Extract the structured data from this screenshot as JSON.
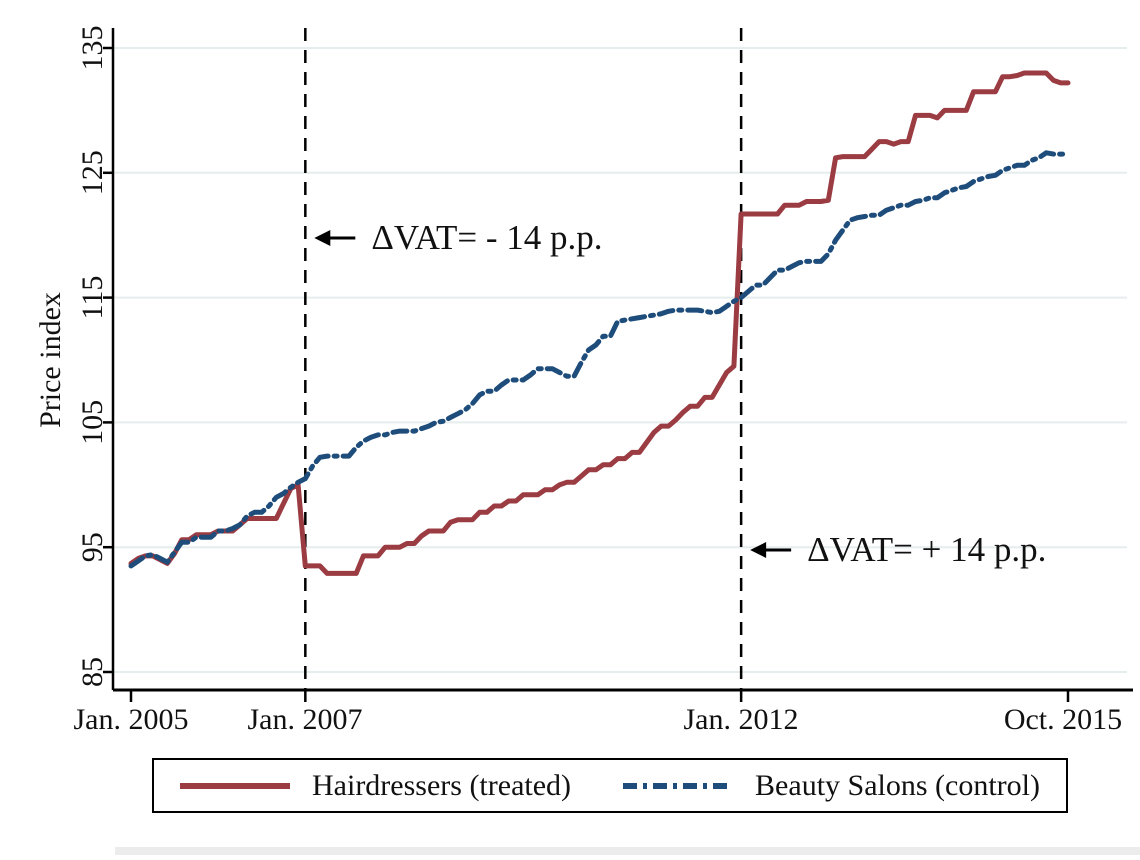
{
  "colors": {
    "treated": "#9b3b42",
    "control": "#1e4d7b",
    "grid": "#e6edee",
    "axis": "#000000"
  },
  "chart_data": {
    "type": "line",
    "title": "",
    "xlabel": "",
    "ylabel": "Price index",
    "x_unit": "months since Jan. 2005 (monthly data, Jan. 2005 - Oct. 2015)",
    "ylim": [
      85,
      135
    ],
    "grid": "horizontal",
    "legend_position": "bottom",
    "y_ticks": [
      85,
      95,
      105,
      115,
      125,
      135
    ],
    "x_ticks": [
      {
        "month": 0,
        "label": "Jan. 2005"
      },
      {
        "month": 24,
        "label": "Jan. 2007"
      },
      {
        "month": 84,
        "label": "Jan. 2012"
      },
      {
        "month": 129,
        "label": "Oct. 2015"
      }
    ],
    "vlines": [
      {
        "month": 24,
        "label": "ΔVAT= - 14 p.p."
      },
      {
        "month": 84,
        "label": "ΔVAT= + 14 p.p."
      }
    ],
    "series": [
      {
        "name": "Hairdressers (treated)",
        "color": "#9b3b42",
        "style": "solid",
        "values": [
          93.7,
          94.1,
          94.3,
          94.3,
          94.0,
          93.7,
          94.5,
          95.6,
          95.6,
          96.0,
          96.0,
          96.0,
          96.3,
          96.3,
          96.3,
          96.8,
          97.3,
          97.3,
          97.3,
          97.3,
          97.3,
          98.5,
          99.7,
          100.0,
          93.5,
          93.5,
          93.5,
          92.9,
          92.9,
          92.9,
          92.9,
          92.9,
          94.3,
          94.3,
          94.3,
          95.0,
          95.0,
          95.0,
          95.3,
          95.3,
          95.9,
          96.3,
          96.3,
          96.3,
          97.0,
          97.2,
          97.2,
          97.2,
          97.8,
          97.8,
          98.3,
          98.3,
          98.7,
          98.7,
          99.2,
          99.2,
          99.2,
          99.6,
          99.6,
          100.0,
          100.2,
          100.2,
          100.7,
          101.2,
          101.2,
          101.6,
          101.6,
          102.1,
          102.1,
          102.6,
          102.6,
          103.4,
          104.2,
          104.7,
          104.7,
          105.2,
          105.8,
          106.3,
          106.3,
          107.0,
          107.0,
          108.0,
          109.0,
          109.5,
          121.7,
          121.7,
          121.7,
          121.7,
          121.7,
          121.7,
          122.4,
          122.4,
          122.4,
          122.7,
          122.7,
          122.7,
          122.8,
          126.2,
          126.3,
          126.3,
          126.3,
          126.3,
          126.9,
          127.5,
          127.5,
          127.3,
          127.5,
          127.5,
          129.6,
          129.6,
          129.6,
          129.4,
          130.0,
          130.0,
          130.0,
          130.0,
          131.5,
          131.5,
          131.5,
          131.5,
          132.7,
          132.7,
          132.8,
          133.0,
          133.0,
          133.0,
          133.0,
          132.4,
          132.2,
          132.2
        ]
      },
      {
        "name": "Beauty Salons (control)",
        "color": "#1e4d7b",
        "style": "dash-dot",
        "values": [
          93.5,
          93.9,
          94.3,
          94.4,
          94.1,
          93.8,
          94.6,
          95.4,
          95.4,
          95.8,
          95.8,
          95.8,
          96.3,
          96.3,
          96.5,
          96.8,
          97.5,
          97.8,
          97.8,
          98.3,
          99.0,
          99.3,
          99.8,
          100.2,
          100.5,
          101.5,
          102.2,
          102.3,
          102.3,
          102.3,
          102.3,
          103.0,
          103.5,
          103.8,
          104.0,
          104.0,
          104.2,
          104.3,
          104.3,
          104.3,
          104.5,
          104.7,
          105.0,
          105.1,
          105.4,
          105.7,
          106.0,
          106.5,
          107.2,
          107.5,
          107.5,
          108.0,
          108.4,
          108.4,
          108.4,
          108.8,
          109.3,
          109.3,
          109.3,
          109.0,
          108.7,
          108.7,
          109.8,
          110.8,
          111.2,
          111.9,
          111.9,
          113.1,
          113.2,
          113.3,
          113.4,
          113.5,
          113.6,
          113.7,
          113.9,
          114.0,
          114.0,
          114.0,
          114.0,
          113.9,
          113.8,
          113.9,
          114.3,
          114.7,
          115.0,
          115.5,
          116.0,
          116.0,
          116.6,
          117.2,
          117.2,
          117.5,
          117.8,
          117.9,
          117.9,
          117.9,
          118.5,
          119.6,
          120.4,
          121.2,
          121.4,
          121.5,
          121.6,
          121.6,
          122.0,
          122.2,
          122.4,
          122.4,
          122.7,
          122.8,
          123.0,
          123.0,
          123.4,
          123.6,
          123.8,
          123.9,
          124.3,
          124.5,
          124.7,
          124.8,
          125.2,
          125.4,
          125.6,
          125.6,
          126.0,
          126.2,
          126.6,
          126.5,
          126.5,
          126.5
        ]
      }
    ]
  },
  "legend": {
    "items": [
      {
        "label": "Hairdressers (treated)",
        "color": "#9b3b42",
        "style": "solid"
      },
      {
        "label": "Beauty Salons (control)",
        "color": "#1e4d7b",
        "style": "dash-dot"
      }
    ]
  }
}
